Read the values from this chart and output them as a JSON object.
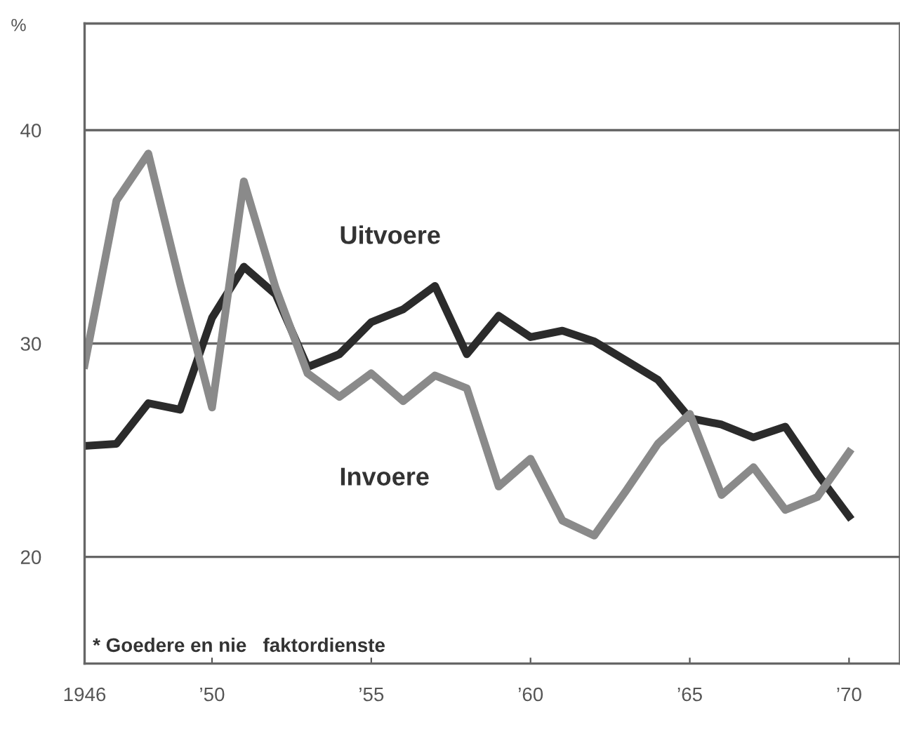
{
  "chart_data": {
    "type": "line",
    "ylabel": "%",
    "annotations": [
      "* Goedere en nie   faktordienste"
    ],
    "x": [
      1946,
      1947,
      1948,
      1949,
      1950,
      1951,
      1952,
      1953,
      1954,
      1955,
      1956,
      1957,
      1958,
      1959,
      1960,
      1961,
      1962,
      1963,
      1964,
      1965,
      1966,
      1967,
      1968,
      1969,
      1970
    ],
    "series": [
      {
        "name": "Uitvoere",
        "color": "#2b2b2b",
        "values": [
          25.2,
          25.3,
          27.2,
          26.9,
          31.2,
          33.6,
          32.3,
          28.9,
          29.5,
          31.0,
          31.6,
          32.7,
          29.5,
          31.3,
          30.3,
          30.6,
          30.1,
          29.2,
          28.3,
          26.5,
          26.2,
          25.6,
          26.1,
          23.9,
          21.9
        ]
      },
      {
        "name": "Invoere",
        "color": "#8a8a8a",
        "values": [
          29.0,
          36.7,
          38.9,
          32.8,
          27.0,
          37.6,
          32.6,
          28.6,
          27.5,
          28.6,
          27.3,
          28.5,
          27.9,
          23.3,
          24.6,
          21.7,
          21.0,
          23.1,
          25.3,
          26.7,
          22.9,
          24.2,
          22.2,
          22.8,
          24.9
        ]
      }
    ],
    "xlim": [
      1946,
      1971.6
    ],
    "ylim": [
      15,
      45
    ],
    "xticks": [
      1946,
      {
        "value": 1950,
        "label": "’50"
      },
      {
        "value": 1955,
        "label": "’55"
      },
      {
        "value": 1960,
        "label": "’60"
      },
      {
        "value": 1965,
        "label": "’65"
      },
      {
        "value": 1970,
        "label": "’70"
      }
    ],
    "yticks": [
      20,
      30,
      40
    ],
    "grid": "y",
    "legend": false,
    "marker": "none",
    "line_style": "solid"
  }
}
